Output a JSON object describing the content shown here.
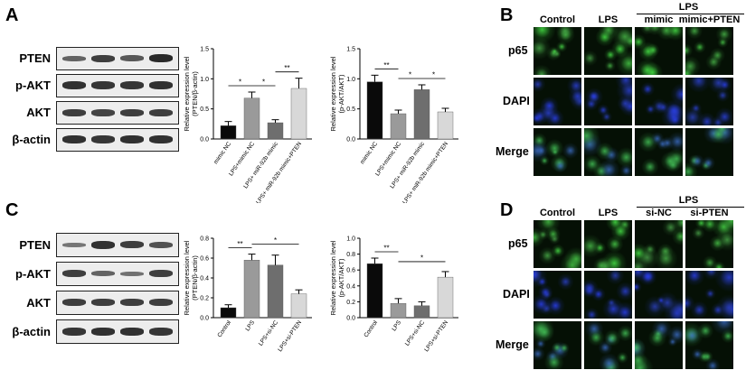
{
  "panels": {
    "A": {
      "letter": "A",
      "blot_labels": [
        "PTEN",
        "p-AKT",
        "AKT",
        "β-actin"
      ],
      "band_intensity": [
        [
          0.55,
          0.85,
          0.65,
          1.0
        ],
        [
          0.95,
          0.9,
          0.9,
          0.95
        ],
        [
          0.85,
          0.8,
          0.85,
          0.85
        ],
        [
          0.95,
          0.9,
          0.95,
          0.95
        ]
      ]
    },
    "B": {
      "letter": "B",
      "group_label": "LPS",
      "columns": [
        "Control",
        "LPS",
        "mimic",
        "mimic+PTEN"
      ],
      "rows": [
        "p65",
        "DAPI",
        "Merge"
      ]
    },
    "C": {
      "letter": "C",
      "blot_labels": [
        "PTEN",
        "p-AKT",
        "AKT",
        "β-actin"
      ],
      "band_intensity": [
        [
          0.4,
          0.95,
          0.85,
          0.7
        ],
        [
          0.85,
          0.55,
          0.45,
          0.85
        ],
        [
          0.85,
          0.85,
          0.85,
          0.85
        ],
        [
          0.9,
          0.95,
          0.95,
          0.9
        ]
      ]
    },
    "D": {
      "letter": "D",
      "group_label": "LPS",
      "columns": [
        "Control",
        "LPS",
        "si-NC",
        "si-PTEN"
      ],
      "rows": [
        "p65",
        "DAPI",
        "Merge"
      ]
    }
  },
  "chart_data": [
    {
      "type": "bar",
      "ylabel": "Relative expression level",
      "ylabel2": "(PTEN/β-actin)",
      "categories": [
        "mimic NC",
        "LPS+mimic NC",
        "LPS+ miR-92b mimic",
        "LPS+ miR-92b mimic+PTEN"
      ],
      "values": [
        0.22,
        0.68,
        0.27,
        0.84
      ],
      "errors": [
        0.07,
        0.1,
        0.05,
        0.17
      ],
      "colors": [
        "#0a0a0a",
        "#9a9a9a",
        "#6e6e6e",
        "#d8d8d8"
      ],
      "ylim": [
        0,
        1.5
      ],
      "yticks": [
        "0.0",
        "0.5",
        "1.0",
        "1.5"
      ],
      "significance": [
        {
          "from": 0,
          "to": 1,
          "label": "*"
        },
        {
          "from": 1,
          "to": 2,
          "label": "*"
        },
        {
          "from": 2,
          "to": 3,
          "label": "**"
        }
      ]
    },
    {
      "type": "bar",
      "ylabel": "Relative expression level",
      "ylabel2": "(p-AKT/AKT)",
      "categories": [
        "mimic NC",
        "LPS+mimic NC",
        "LPS+ miR-92b mimic",
        "LPS+ miR-92b mimic+PTEN"
      ],
      "values": [
        0.95,
        0.42,
        0.82,
        0.45
      ],
      "errors": [
        0.11,
        0.06,
        0.08,
        0.06
      ],
      "colors": [
        "#0a0a0a",
        "#9a9a9a",
        "#6e6e6e",
        "#d8d8d8"
      ],
      "ylim": [
        0,
        1.5
      ],
      "yticks": [
        "0.0",
        "0.5",
        "1.0",
        "1.5"
      ],
      "significance": [
        {
          "from": 0,
          "to": 1,
          "label": "**"
        },
        {
          "from": 1,
          "to": 2,
          "label": "*"
        },
        {
          "from": 2,
          "to": 3,
          "label": "*"
        }
      ]
    },
    {
      "type": "bar",
      "ylabel": "Relative expression level",
      "ylabel2": "(PTEN/β-actin)",
      "categories": [
        "Control",
        "LPS",
        "LPS+si-NC",
        "LPS+si-PTEN"
      ],
      "values": [
        0.1,
        0.58,
        0.53,
        0.24
      ],
      "errors": [
        0.03,
        0.06,
        0.1,
        0.04
      ],
      "colors": [
        "#0a0a0a",
        "#9a9a9a",
        "#6e6e6e",
        "#d8d8d8"
      ],
      "ylim": [
        0,
        0.8
      ],
      "yticks": [
        "0.0",
        "0.2",
        "0.4",
        "0.6",
        "0.8"
      ],
      "significance": [
        {
          "from": 0,
          "to": 1,
          "label": "**"
        },
        {
          "from": 1,
          "to": 3,
          "label": "*"
        }
      ]
    },
    {
      "type": "bar",
      "ylabel": "Relative expression level",
      "ylabel2": "(p-AKT/AKT)",
      "categories": [
        "Control",
        "LPS",
        "LPS+si-NC",
        "LPS+si-PTEN"
      ],
      "values": [
        0.68,
        0.18,
        0.15,
        0.51
      ],
      "errors": [
        0.07,
        0.06,
        0.05,
        0.07
      ],
      "colors": [
        "#0a0a0a",
        "#9a9a9a",
        "#6e6e6e",
        "#d8d8d8"
      ],
      "ylim": [
        0,
        1.0
      ],
      "yticks": [
        "0.0",
        "0.2",
        "0.4",
        "0.6",
        "0.8",
        "1.0"
      ],
      "significance": [
        {
          "from": 0,
          "to": 1,
          "label": "**"
        },
        {
          "from": 1,
          "to": 3,
          "label": "*"
        }
      ]
    }
  ]
}
